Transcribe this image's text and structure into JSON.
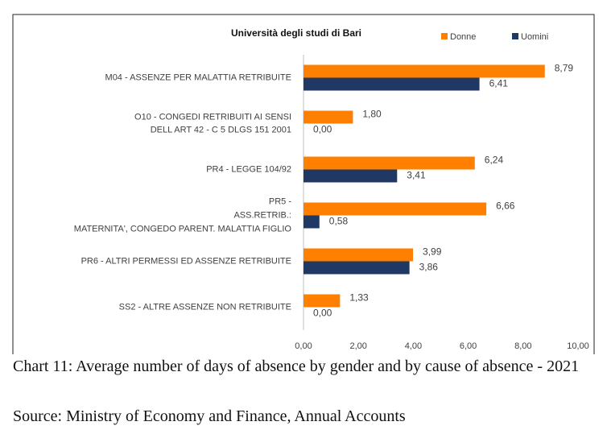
{
  "chart_data": {
    "type": "barh",
    "title": "Università degli studi di Bari",
    "categories": [
      [
        "M04 - ASSENZE PER MALATTIA RETRIBUITE"
      ],
      [
        "O10 - CONGEDI RETRIBUITI  AI SENSI",
        "DELL ART 42 - C 5  DLGS 151 2001"
      ],
      [
        "PR4 - LEGGE 104/92"
      ],
      [
        "PR5 -",
        "ASS.RETRIB.:",
        "MATERNITA', CONGEDO PARENT. MALATTIA FIGLIO"
      ],
      [
        "PR6 - ALTRI PERMESSI ED ASSENZE RETRIBUITE"
      ],
      [
        "SS2 - ALTRE ASSENZE NON RETRIBUITE"
      ]
    ],
    "series": [
      {
        "name": "Donne",
        "color": "#ff8000",
        "values": [
          8.79,
          1.8,
          6.24,
          6.66,
          3.99,
          1.33
        ],
        "value_labels": [
          "8,79",
          "1,80",
          "6,24",
          "6,66",
          "3,99",
          "1,33"
        ]
      },
      {
        "name": "Uomini",
        "color": "#1f3864",
        "values": [
          6.41,
          0.0,
          3.41,
          0.58,
          3.86,
          0.0
        ],
        "value_labels": [
          "6,41",
          "0,00",
          "3,41",
          "0,58",
          "3,86",
          "0,00"
        ]
      }
    ],
    "xlim": [
      0,
      10
    ],
    "xticks": [
      {
        "value": 0,
        "label": "0,00"
      },
      {
        "value": 2,
        "label": "2,00"
      },
      {
        "value": 4,
        "label": "4,00"
      },
      {
        "value": 6,
        "label": "6,00"
      },
      {
        "value": 8,
        "label": "8,00"
      },
      {
        "value": 10,
        "label": "10,00"
      }
    ],
    "legend": "top-right"
  },
  "caption": [
    "Chart 11: Average number of days of absence by gender and by cause of absence - 2021",
    "Source: Ministry of Economy and Finance, Annual Accounts"
  ]
}
